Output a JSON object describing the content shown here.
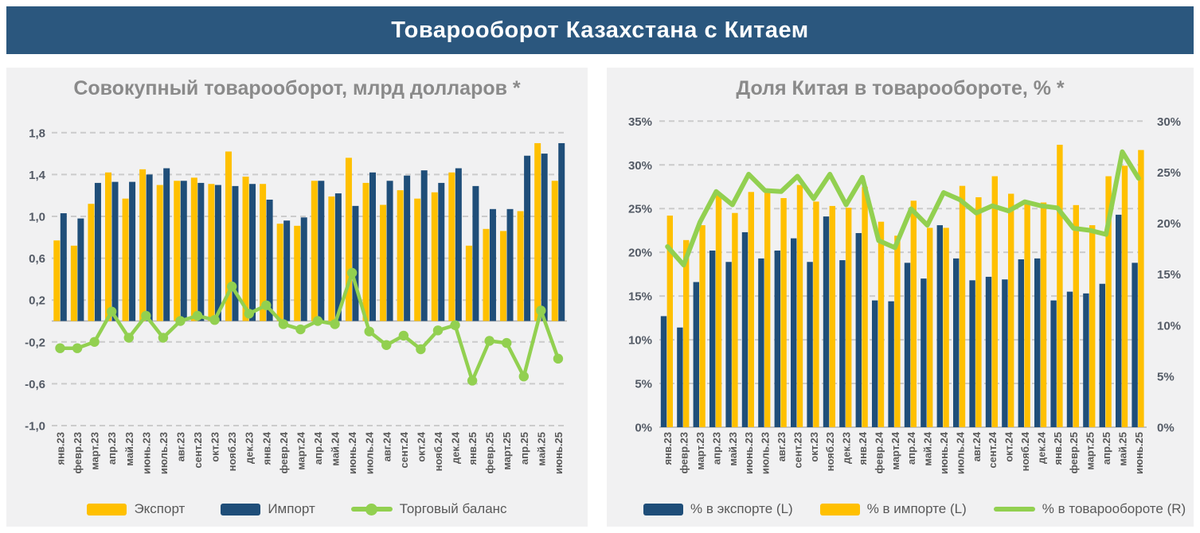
{
  "banner": {
    "title": "Товарооборот Казахстана с Китаем"
  },
  "colors": {
    "banner_bg": "#2B577E",
    "panel_bg": "#F1F1F2",
    "export": "#FFC000",
    "import": "#1F4E79",
    "line": "#92D050",
    "grid": "#CBCBCB",
    "zero_axis": "#B3B3B3",
    "tick_text": "#545B66",
    "month_text": "#595959",
    "title_text": "#8A8A8A",
    "legend_text": "#595959",
    "banner_text": "#FFFFFF"
  },
  "months": [
    "янв.23",
    "февр.23",
    "март.23",
    "апр.23",
    "май.23",
    "июнь.23",
    "июль.23",
    "авг.23",
    "сент.23",
    "окт.23",
    "нояб.23",
    "дек.23",
    "янв.24",
    "февр.24",
    "март.24",
    "апр.24",
    "май.24",
    "июнь.24",
    "июль.24",
    "авг.24",
    "сент.24",
    "окт.24",
    "нояб.24",
    "дек.24",
    "янв.25",
    "февр.25",
    "март.25",
    "апр.25",
    "май.25",
    "июнь.25"
  ],
  "chart_data": [
    {
      "id": "turnover",
      "type": "bar+line",
      "title": "Совокупный товарооборот, млрд долларов *",
      "ylabel": "млрд долларов",
      "ylim": [
        -1.0,
        1.8
      ],
      "ytick_step": 0.4,
      "ytick_values": [
        1.8,
        1.4,
        1.0,
        0.6,
        0.2,
        -0.2,
        -0.6,
        -1.0
      ],
      "ytick_labels": [
        "1,8",
        "1,4",
        "1,0",
        "0,6",
        "0,2",
        "-0,2",
        "-0,6",
        "-1,0"
      ],
      "grid": "dashed-horizontal",
      "legend_position": "bottom",
      "categories": [
        "янв.23",
        "февр.23",
        "март.23",
        "апр.23",
        "май.23",
        "июнь.23",
        "июль.23",
        "авг.23",
        "сент.23",
        "окт.23",
        "нояб.23",
        "дек.23",
        "янв.24",
        "февр.24",
        "март.24",
        "апр.24",
        "май.24",
        "июнь.24",
        "июль.24",
        "авг.24",
        "сент.24",
        "окт.24",
        "нояб.24",
        "дек.24",
        "янв.25",
        "февр.25",
        "март.25",
        "апр.25",
        "май.25",
        "июнь.25"
      ],
      "series": [
        {
          "name": "Экспорт",
          "type": "bar",
          "color": "#FFC000",
          "values": [
            0.77,
            0.72,
            1.12,
            1.42,
            1.17,
            1.45,
            1.3,
            1.34,
            1.37,
            1.31,
            1.62,
            1.38,
            1.31,
            0.93,
            0.91,
            1.34,
            1.19,
            1.56,
            1.32,
            1.11,
            1.25,
            1.17,
            1.23,
            1.42,
            0.72,
            0.88,
            0.86,
            1.05,
            1.7,
            1.34
          ]
        },
        {
          "name": "Импорт",
          "type": "bar",
          "color": "#1F4E79",
          "values": [
            1.03,
            0.98,
            1.32,
            1.33,
            1.33,
            1.4,
            1.46,
            1.34,
            1.32,
            1.3,
            1.29,
            1.31,
            1.16,
            0.96,
            0.99,
            1.34,
            1.22,
            1.1,
            1.42,
            1.34,
            1.39,
            1.44,
            1.32,
            1.46,
            1.29,
            1.07,
            1.07,
            1.58,
            1.6,
            1.7
          ]
        },
        {
          "name": "Торговый баланс",
          "type": "line",
          "markers": true,
          "color": "#92D050",
          "values": [
            -0.26,
            -0.26,
            -0.2,
            0.09,
            -0.16,
            0.05,
            -0.16,
            0.0,
            0.05,
            0.01,
            0.33,
            0.07,
            0.15,
            -0.03,
            -0.08,
            0.0,
            -0.03,
            0.46,
            -0.1,
            -0.23,
            -0.14,
            -0.27,
            -0.09,
            -0.04,
            -0.57,
            -0.19,
            -0.21,
            -0.53,
            0.1,
            -0.36
          ]
        }
      ]
    },
    {
      "id": "china-share",
      "type": "bar+line",
      "title": "Доля Китая в товарообороте, % *",
      "left_ylim": [
        0,
        35
      ],
      "right_ylim": [
        0,
        30
      ],
      "left_tick_values": [
        35,
        30,
        25,
        20,
        15,
        10,
        5,
        0
      ],
      "left_tick_labels": [
        "35%",
        "30%",
        "25%",
        "20%",
        "15%",
        "10%",
        "5%",
        "0%"
      ],
      "right_tick_values": [
        30,
        25,
        20,
        15,
        10,
        5,
        0
      ],
      "right_tick_labels": [
        "30%",
        "25%",
        "20%",
        "15%",
        "10%",
        "5%",
        "0%"
      ],
      "grid": "dashed-horizontal",
      "legend_position": "bottom",
      "categories": [
        "янв.23",
        "февр.23",
        "март.23",
        "апр.23",
        "май.23",
        "июнь.23",
        "июль.23",
        "авг.23",
        "сент.23",
        "окт.23",
        "нояб.23",
        "дек.23",
        "янв.24",
        "февр.24",
        "март.24",
        "апр.24",
        "май.24",
        "июнь.24",
        "июль.24",
        "авг.24",
        "сент.24",
        "окт.24",
        "нояб.24",
        "дек.24",
        "янв.25",
        "февр.25",
        "март.25",
        "апр.25",
        "май.25",
        "июнь.25"
      ],
      "series": [
        {
          "name": "% в экспорте (L)",
          "type": "bar",
          "axis": "left",
          "color": "#1F4E79",
          "values": [
            12.7,
            11.4,
            16.6,
            20.2,
            18.9,
            22.3,
            19.3,
            20.2,
            21.6,
            18.9,
            24.1,
            19.1,
            22.2,
            14.5,
            14.4,
            18.8,
            17.0,
            23.1,
            19.3,
            16.8,
            17.2,
            16.9,
            19.2,
            19.3,
            14.5,
            15.5,
            15.3,
            16.4,
            24.3,
            18.8
          ]
        },
        {
          "name": "% в импорте (L)",
          "type": "bar",
          "axis": "left",
          "color": "#FFC000",
          "values": [
            24.2,
            21.4,
            23.1,
            26.6,
            24.5,
            26.9,
            27.2,
            26.2,
            27.7,
            25.8,
            25.3,
            25.1,
            27.5,
            23.5,
            21.9,
            25.9,
            22.8,
            22.8,
            27.6,
            26.3,
            28.7,
            26.7,
            25.7,
            25.7,
            32.3,
            25.4,
            23.1,
            28.7,
            29.9,
            31.7
          ]
        },
        {
          "name": "% в товарообороте (R)",
          "type": "line",
          "axis": "right",
          "markers": false,
          "color": "#92D050",
          "values": [
            17.7,
            15.9,
            20.1,
            23.1,
            21.8,
            24.8,
            23.2,
            23.1,
            24.6,
            22.4,
            24.8,
            21.8,
            24.5,
            18.3,
            17.6,
            21.4,
            19.8,
            23.0,
            22.3,
            21.0,
            21.7,
            21.2,
            22.1,
            21.7,
            21.5,
            19.5,
            19.3,
            18.9,
            27.0,
            24.4
          ]
        }
      ]
    }
  ]
}
